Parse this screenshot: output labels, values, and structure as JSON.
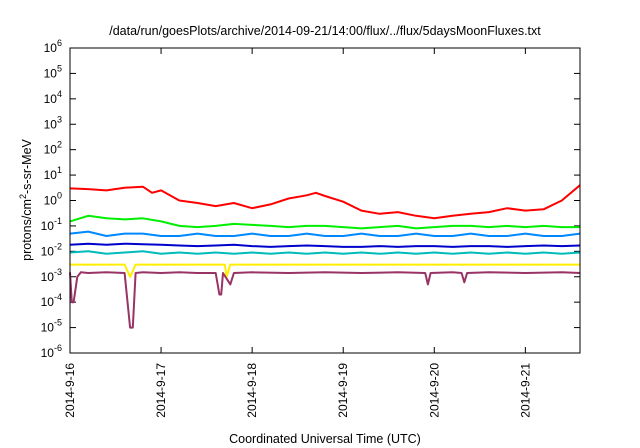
{
  "chart_data": {
    "type": "line",
    "title": "/data/run/goesPlots/archive/2014-09-21/14:00/flux/../flux/5daysMoonFluxes.txt",
    "xlabel": "Coordinated Universal Time (UTC)",
    "ylabel": "protons/cm2-s-sr-MeV",
    "ylabel_parts": {
      "before": "protons/cm",
      "sup": "2",
      "after": "-s-sr-MeV"
    },
    "yscale": "log",
    "ylim_exp": [
      -6,
      6
    ],
    "y_ticks": [
      {
        "base": "10",
        "exp": "6"
      },
      {
        "base": "10",
        "exp": "5"
      },
      {
        "base": "10",
        "exp": "4"
      },
      {
        "base": "10",
        "exp": "3"
      },
      {
        "base": "10",
        "exp": "2"
      },
      {
        "base": "10",
        "exp": "1"
      },
      {
        "base": "10",
        "exp": "0"
      },
      {
        "base": "10",
        "exp": "-1"
      },
      {
        "base": "10",
        "exp": "-2"
      },
      {
        "base": "10",
        "exp": "-3"
      },
      {
        "base": "10",
        "exp": "-4"
      },
      {
        "base": "10",
        "exp": "-5"
      },
      {
        "base": "10",
        "exp": "-6"
      }
    ],
    "x_ticks": [
      "2014-9-16",
      "2014-9-17",
      "2014-9-18",
      "2014-9-19",
      "2014-9-20",
      "2014-9-21"
    ],
    "xlim_days": [
      0,
      5.6
    ],
    "grid": false,
    "legend": "none",
    "series": [
      {
        "color": "#ff0000",
        "x": [
          0,
          0.2,
          0.4,
          0.6,
          0.8,
          0.9,
          1.0,
          1.2,
          1.4,
          1.6,
          1.8,
          2.0,
          2.2,
          2.4,
          2.6,
          2.7,
          2.8,
          3.0,
          3.2,
          3.4,
          3.6,
          3.8,
          4.0,
          4.2,
          4.4,
          4.6,
          4.8,
          5.0,
          5.2,
          5.4,
          5.6
        ],
        "y": [
          3.0,
          2.8,
          2.5,
          3.2,
          3.5,
          2.0,
          2.5,
          1.0,
          0.8,
          0.6,
          0.8,
          0.5,
          0.7,
          1.2,
          1.6,
          2.0,
          1.5,
          0.9,
          0.4,
          0.3,
          0.35,
          0.25,
          0.2,
          0.25,
          0.3,
          0.35,
          0.5,
          0.4,
          0.45,
          1.0,
          4.0
        ]
      },
      {
        "color": "#00ee00",
        "x": [
          0,
          0.2,
          0.4,
          0.6,
          0.8,
          1.0,
          1.2,
          1.4,
          1.6,
          1.8,
          2.0,
          2.2,
          2.4,
          2.6,
          2.8,
          3.0,
          3.2,
          3.4,
          3.6,
          3.8,
          4.0,
          4.2,
          4.4,
          4.6,
          4.8,
          5.0,
          5.2,
          5.4,
          5.6
        ],
        "y": [
          0.15,
          0.25,
          0.2,
          0.18,
          0.2,
          0.15,
          0.1,
          0.09,
          0.1,
          0.12,
          0.11,
          0.1,
          0.09,
          0.1,
          0.1,
          0.09,
          0.08,
          0.09,
          0.1,
          0.08,
          0.09,
          0.1,
          0.1,
          0.09,
          0.1,
          0.09,
          0.1,
          0.09,
          0.09
        ]
      },
      {
        "color": "#0088ff",
        "x": [
          0,
          0.2,
          0.4,
          0.6,
          0.8,
          1.0,
          1.2,
          1.4,
          1.6,
          1.8,
          2.0,
          2.2,
          2.4,
          2.6,
          2.8,
          3.0,
          3.2,
          3.4,
          3.6,
          3.8,
          4.0,
          4.2,
          4.4,
          4.6,
          4.8,
          5.0,
          5.2,
          5.4,
          5.6
        ],
        "y": [
          0.05,
          0.06,
          0.04,
          0.05,
          0.05,
          0.04,
          0.04,
          0.05,
          0.04,
          0.04,
          0.05,
          0.04,
          0.04,
          0.05,
          0.04,
          0.04,
          0.05,
          0.04,
          0.04,
          0.05,
          0.04,
          0.04,
          0.05,
          0.04,
          0.04,
          0.05,
          0.04,
          0.04,
          0.05
        ]
      },
      {
        "color": "#0000cc",
        "x": [
          0,
          0.2,
          0.4,
          0.6,
          0.8,
          1.0,
          1.2,
          1.4,
          1.6,
          1.8,
          2.0,
          2.2,
          2.4,
          2.6,
          2.8,
          3.0,
          3.2,
          3.4,
          3.6,
          3.8,
          4.0,
          4.2,
          4.4,
          4.6,
          4.8,
          5.0,
          5.2,
          5.4,
          5.6
        ],
        "y": [
          0.018,
          0.02,
          0.018,
          0.02,
          0.019,
          0.018,
          0.017,
          0.016,
          0.017,
          0.018,
          0.016,
          0.015,
          0.016,
          0.017,
          0.016,
          0.015,
          0.015,
          0.016,
          0.015,
          0.016,
          0.016,
          0.015,
          0.016,
          0.016,
          0.015,
          0.016,
          0.017,
          0.016,
          0.017
        ]
      },
      {
        "color": "#00bbbb",
        "x": [
          0,
          0.2,
          0.4,
          0.6,
          0.8,
          1.0,
          1.2,
          1.4,
          1.6,
          1.8,
          2.0,
          2.2,
          2.4,
          2.6,
          2.8,
          3.0,
          3.2,
          3.4,
          3.6,
          3.8,
          4.0,
          4.2,
          4.4,
          4.6,
          4.8,
          5.0,
          5.2,
          5.4,
          5.6
        ],
        "y": [
          0.009,
          0.01,
          0.008,
          0.009,
          0.01,
          0.008,
          0.009,
          0.008,
          0.009,
          0.008,
          0.009,
          0.008,
          0.009,
          0.008,
          0.009,
          0.008,
          0.009,
          0.008,
          0.009,
          0.008,
          0.009,
          0.008,
          0.009,
          0.008,
          0.009,
          0.008,
          0.009,
          0.008,
          0.009
        ]
      },
      {
        "color": "#ffee00",
        "x": [
          0,
          0.6,
          0.66,
          0.72,
          1.2,
          1.7,
          1.72,
          1.76,
          2.4,
          3.0,
          3.6,
          4.2,
          4.8,
          5.4,
          5.6
        ],
        "y": [
          0.003,
          0.003,
          0.001,
          0.003,
          0.003,
          0.003,
          0.001,
          0.003,
          0.003,
          0.003,
          0.003,
          0.003,
          0.003,
          0.003,
          0.003
        ]
      },
      {
        "color": "#993366",
        "x": [
          0,
          0.02,
          0.04,
          0.08,
          0.12,
          0.2,
          0.4,
          0.6,
          0.66,
          0.69,
          0.72,
          0.8,
          1.0,
          1.2,
          1.4,
          1.6,
          1.64,
          1.66,
          1.68,
          1.76,
          1.8,
          2.0,
          2.4,
          2.8,
          3.2,
          3.6,
          3.9,
          3.93,
          3.96,
          4.2,
          4.3,
          4.33,
          4.36,
          4.6,
          5.0,
          5.4,
          5.6
        ],
        "y": [
          0.0015,
          0.0001,
          0.0001,
          0.001,
          0.0015,
          0.0014,
          0.0015,
          0.0014,
          1e-05,
          1e-05,
          0.0014,
          0.0015,
          0.0014,
          0.0015,
          0.0014,
          0.0014,
          0.0002,
          0.0002,
          0.0014,
          0.0005,
          0.0014,
          0.0015,
          0.0014,
          0.0015,
          0.0014,
          0.0015,
          0.0014,
          0.0005,
          0.0014,
          0.0015,
          0.0014,
          0.0006,
          0.0014,
          0.0015,
          0.0014,
          0.0015,
          0.0014
        ]
      }
    ]
  }
}
